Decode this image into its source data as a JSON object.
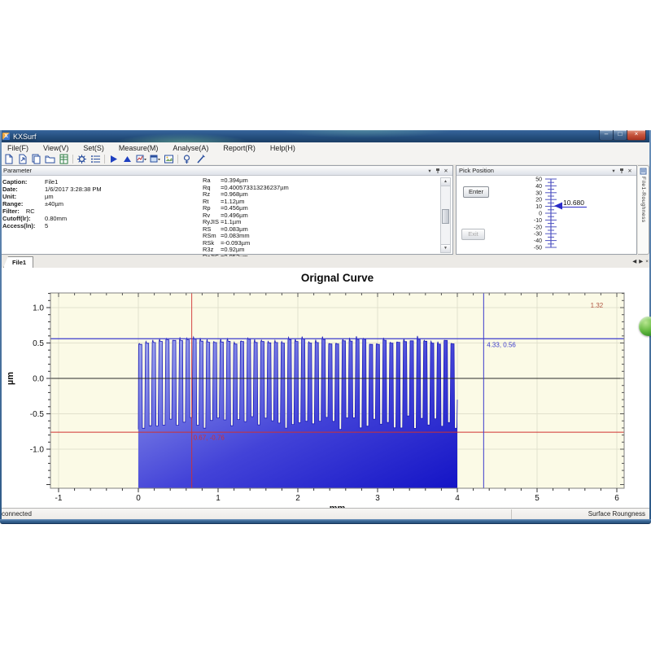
{
  "window": {
    "title": "KXSurf",
    "controls": {
      "minimize": "–",
      "maximize": "□",
      "close": "×"
    }
  },
  "menu": {
    "items": [
      "File(F)",
      "View(V)",
      "Set(S)",
      "Measure(M)",
      "Analyse(A)",
      "Report(R)",
      "Help(H)"
    ]
  },
  "toolbar": {
    "icons": [
      "new-file",
      "open-file",
      "copy",
      "folder",
      "excel-export",
      "|",
      "settings-gear",
      "list-properties",
      "|",
      "measure-start",
      "measure-stop",
      "analyse-chart-dropdown",
      "report-window-dropdown",
      "export-image",
      "|",
      "calibrate-lamp",
      "pen-tool"
    ]
  },
  "parameter_panel": {
    "title": "Parameter",
    "fields": [
      {
        "label": "Caption:",
        "value": "File1"
      },
      {
        "label": "Date:",
        "value": "1/6/2017 3:28:38 PM"
      },
      {
        "label": "Unit:",
        "value": "µm"
      },
      {
        "label": "Range:",
        "value": "±40µm"
      },
      {
        "label": "Filter:",
        "value": "RC",
        "inline": true
      },
      {
        "label": "Cutoff(lr):",
        "value": "0.80mm"
      },
      {
        "label": "Access(ln):",
        "value": "5"
      }
    ],
    "results": [
      {
        "name": "Ra",
        "value": "=0.394µm"
      },
      {
        "name": "Rq",
        "value": "=0.400573313236237µm"
      },
      {
        "name": "Rz",
        "value": "=0.968µm"
      },
      {
        "name": "Rt",
        "value": "=1.12µm"
      },
      {
        "name": "Rp",
        "value": "=0.456µm"
      },
      {
        "name": "Rv",
        "value": "=0.496µm"
      },
      {
        "name": "RyJIS",
        "value": "=1.1µm"
      },
      {
        "name": "RS",
        "value": "=0.083µm"
      },
      {
        "name": "RSm",
        "value": "=0.083mm"
      },
      {
        "name": "RSk",
        "value": "=-0.093µm"
      },
      {
        "name": "R3z",
        "value": "=0.92µm"
      },
      {
        "name": "RzJIS",
        "value": "=0.952µm"
      }
    ]
  },
  "pick_position": {
    "title": "Pick Position",
    "enter_label": "Enter",
    "exit_label": "Exit",
    "scale_max": 50,
    "scale_min": -50,
    "label_step": 10,
    "minor_step": 5,
    "pointer_value": 10.68,
    "pointer_text": "10.680",
    "ruler_color": "#5054c2",
    "arrow_color": "#2a2ac8"
  },
  "side_tab": {
    "label": "File1-Roughness"
  },
  "doc_tabs": {
    "active": "File1",
    "nav": [
      "◀",
      "▶",
      "×"
    ]
  },
  "status_bar": {
    "left": "connected",
    "right": "Surface Roungness"
  },
  "chart_data": {
    "type": "line",
    "title": "Orignal Curve",
    "xlabel": "mm",
    "ylabel": "µm",
    "xlim": [
      -1.1,
      6.09
    ],
    "ylim": [
      -1.55,
      1.21
    ],
    "x_ticks": [
      -1,
      0,
      1,
      2,
      3,
      4,
      5,
      6
    ],
    "y_ticks": [
      -1.0,
      -0.5,
      0.0,
      0.5,
      1.0
    ],
    "x_minor_step": 0.2,
    "y_minor_step": 0.1,
    "bg_color": "#fbfae6",
    "grid_color": "#e2e1cd",
    "waveform": {
      "x_start": 0,
      "x_end": 4,
      "cycles": 47,
      "high_min": 0.48,
      "high_max": 0.56,
      "peak_extra": 0.05,
      "low_min": -0.72,
      "low_max": -0.53,
      "start_value": -0.72,
      "end_value": -0.3,
      "stroke": "#1d1db8",
      "fill_from": "#a0a8ee",
      "fill_mid": "#4343d8",
      "fill_to": "#1414c6"
    },
    "markers": {
      "hline_blue": {
        "y": 0.56,
        "color": "#3c3ccc"
      },
      "hline_zero": {
        "y": 0.0,
        "color": "#2a2a2a"
      },
      "hline_red": {
        "y": -0.76,
        "color": "#d03030"
      },
      "vline_red": {
        "x": 0.67,
        "color": "#d03030"
      },
      "vline_blue": {
        "x": 4.33,
        "color": "#3c3ccc"
      },
      "labels": [
        {
          "text": "1.32",
          "x": 5.67,
          "y": 1.0,
          "color": "#b05540"
        },
        {
          "text": "4.33, 0.56",
          "x": 4.37,
          "y": 0.44,
          "color": "#3c3ccc"
        },
        {
          "text": "0.67, -0.76",
          "x": 0.69,
          "y": -0.87,
          "color": "#d03030"
        }
      ]
    }
  }
}
